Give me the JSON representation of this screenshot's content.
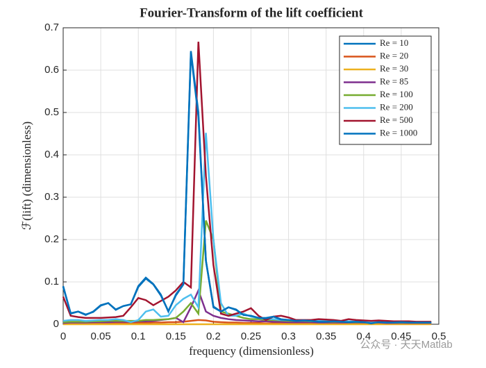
{
  "chart_data": {
    "type": "line",
    "title": "Fourier-Transform of the lift coefficient",
    "x_label": "frequency (dimensionless)",
    "y_label": "ℱ(lift) (dimensionless)",
    "watermark": "公众号 · 天天Matlab",
    "x": [
      0,
      0.01,
      0.02,
      0.03,
      0.04,
      0.05,
      0.06,
      0.07,
      0.08,
      0.09,
      0.1,
      0.11,
      0.12,
      0.13,
      0.14,
      0.15,
      0.16,
      0.17,
      0.18,
      0.19,
      0.2,
      0.21,
      0.22,
      0.23,
      0.24,
      0.25,
      0.26,
      0.27,
      0.28,
      0.29,
      0.3,
      0.31,
      0.32,
      0.33,
      0.34,
      0.35,
      0.36,
      0.37,
      0.38,
      0.39,
      0.4,
      0.41,
      0.42,
      0.43,
      0.44,
      0.45,
      0.46,
      0.47,
      0.48,
      0.49
    ],
    "series": [
      {
        "name": "Re = 10",
        "color": "#0072BD",
        "values": [
          0.09,
          0.025,
          0.03,
          0.022,
          0.03,
          0.045,
          0.05,
          0.035,
          0.043,
          0.047,
          0.09,
          0.11,
          0.095,
          0.07,
          0.03,
          0.07,
          0.095,
          0.645,
          0.5,
          0.15,
          0.04,
          0.03,
          0.04,
          0.035,
          0.022,
          0.02,
          0.015,
          0.015,
          0.018,
          0.012,
          0.01,
          0.008,
          0.009,
          0.008,
          0.007,
          0.006,
          0.007,
          0.006,
          0.005,
          0.006,
          0.005,
          0.004,
          0.005,
          0.004,
          0.004,
          0.005,
          0.004,
          0.004,
          0.004,
          0.004
        ]
      },
      {
        "name": "Re = 20",
        "color": "#D95319",
        "values": [
          0.002,
          0.003,
          0.002,
          0.002,
          0.003,
          0.002,
          0.002,
          0.003,
          0.002,
          0.003,
          0.003,
          0.003,
          0.004,
          0.004,
          0.005,
          0.005,
          0.006,
          0.008,
          0.01,
          0.009,
          0.006,
          0.005,
          0.004,
          0.004,
          0.003,
          0.003,
          0.003,
          0.002,
          0.002,
          0.002,
          0.002,
          0.002,
          0.002,
          0.002,
          0.002,
          0.002,
          0.002,
          0.002,
          0.002,
          0.002,
          0.002,
          0.002,
          0.002,
          0.002,
          0.002,
          0.002,
          0.002,
          0.002,
          0.002,
          0.002
        ]
      },
      {
        "name": "Re = 30",
        "color": "#EDB120",
        "values": [
          0,
          0,
          0,
          0,
          0,
          0,
          0,
          0,
          0,
          0,
          0,
          0,
          0,
          0,
          0,
          0,
          0,
          0,
          0,
          0,
          0,
          0,
          0,
          0,
          0,
          0,
          0,
          0,
          0,
          0,
          0,
          0,
          0,
          0,
          0,
          0,
          0,
          0,
          0,
          0,
          0,
          0,
          0,
          0,
          0,
          0,
          0,
          0,
          0,
          0
        ]
      },
      {
        "name": "Re = 85",
        "color": "#7E2F8E",
        "values": [
          0.003,
          0.004,
          0.004,
          0.004,
          0.005,
          0.005,
          0.005,
          0.006,
          0.006,
          0.006,
          0.007,
          0.007,
          0.008,
          0.01,
          0.012,
          0.015,
          0.005,
          0.04,
          0.08,
          0.03,
          0.02,
          0.015,
          0.012,
          0.01,
          0.009,
          0.008,
          0.007,
          0.007,
          0.006,
          0.006,
          0.005,
          0.005,
          0.005,
          0.005,
          0.004,
          0.004,
          0.004,
          0.004,
          0.004,
          0.004,
          0.004,
          0.004,
          0.004,
          0.003,
          0.003,
          0.003,
          0.003,
          0.003,
          0.003,
          0.003
        ]
      },
      {
        "name": "Re = 100",
        "color": "#77AC30",
        "values": [
          0.005,
          0.006,
          0.006,
          0.006,
          0.007,
          0.007,
          0.008,
          0.008,
          0.008,
          0.008,
          0.008,
          0.01,
          0.01,
          0.011,
          0.012,
          0.015,
          0.03,
          0.05,
          0.025,
          0.245,
          0.2,
          0.03,
          0.025,
          0.02,
          0.015,
          0.012,
          0.012,
          0.01,
          0.01,
          0.009,
          0.008,
          0.008,
          0.008,
          0.007,
          0.007,
          0.006,
          0.006,
          0.006,
          0.005,
          0.005,
          0.005,
          0.005,
          0.005,
          0.005,
          0.004,
          0.004,
          0.004,
          0.004,
          0.004,
          0.004
        ]
      },
      {
        "name": "Re = 200",
        "color": "#4DBEEE",
        "values": [
          0.008,
          0.01,
          0.01,
          0.008,
          0.009,
          0.01,
          0.01,
          0.012,
          0.01,
          0.005,
          0.01,
          0.03,
          0.035,
          0.018,
          0.02,
          0.045,
          0.06,
          0.07,
          0.04,
          0.452,
          0.2,
          0.05,
          0.02,
          0.02,
          0.025,
          0.018,
          0.015,
          0.012,
          0.012,
          0.01,
          0.01,
          0.01,
          0.009,
          0.008,
          0.008,
          0.008,
          0.007,
          0.007,
          0.007,
          0.006,
          0.006,
          0.006,
          0.006,
          0.005,
          0.005,
          0.005,
          0.005,
          0.005,
          0.005,
          0.005
        ]
      },
      {
        "name": "Re = 500",
        "color": "#A2142F",
        "values": [
          0.065,
          0.02,
          0.017,
          0.015,
          0.015,
          0.015,
          0.016,
          0.017,
          0.02,
          0.04,
          0.062,
          0.057,
          0.045,
          0.055,
          0.065,
          0.08,
          0.1,
          0.087,
          0.667,
          0.35,
          0.14,
          0.025,
          0.02,
          0.025,
          0.03,
          0.038,
          0.02,
          0.01,
          0.018,
          0.02,
          0.016,
          0.01,
          0.01,
          0.01,
          0.012,
          0.011,
          0.01,
          0.008,
          0.012,
          0.01,
          0.009,
          0.008,
          0.009,
          0.008,
          0.007,
          0.007,
          0.007,
          0.006,
          0.006,
          0.006
        ]
      },
      {
        "name": "Re = 1000",
        "color": "#0072BD",
        "values": [
          0.088,
          0.026,
          0.03,
          0.023,
          0.029,
          0.044,
          0.05,
          0.034,
          0.043,
          0.047,
          0.088,
          0.108,
          0.094,
          0.068,
          0.031,
          0.068,
          0.094,
          0.64,
          0.49,
          0.15,
          0.042,
          0.03,
          0.04,
          0.034,
          0.022,
          0.02,
          0.015,
          0.014,
          0.018,
          0.011,
          0.01,
          0.008,
          0.009,
          0.008,
          0.006,
          0.006,
          0.007,
          0.006,
          0.005,
          0.006,
          0.005,
          0.002,
          0.005,
          0.004,
          0.004,
          0.005,
          0.004,
          0.004,
          0.004,
          0.004
        ]
      }
    ],
    "xlim": [
      0,
      0.5
    ],
    "xticks": [
      0,
      0.05,
      0.1,
      0.15,
      0.2,
      0.25,
      0.3,
      0.35,
      0.4,
      0.45,
      0.5
    ],
    "ylim": [
      0,
      0.7
    ],
    "yticks": [
      0,
      0.1,
      0.2,
      0.3,
      0.4,
      0.5,
      0.6,
      0.7
    ],
    "grid": true,
    "legend": "top-right"
  }
}
